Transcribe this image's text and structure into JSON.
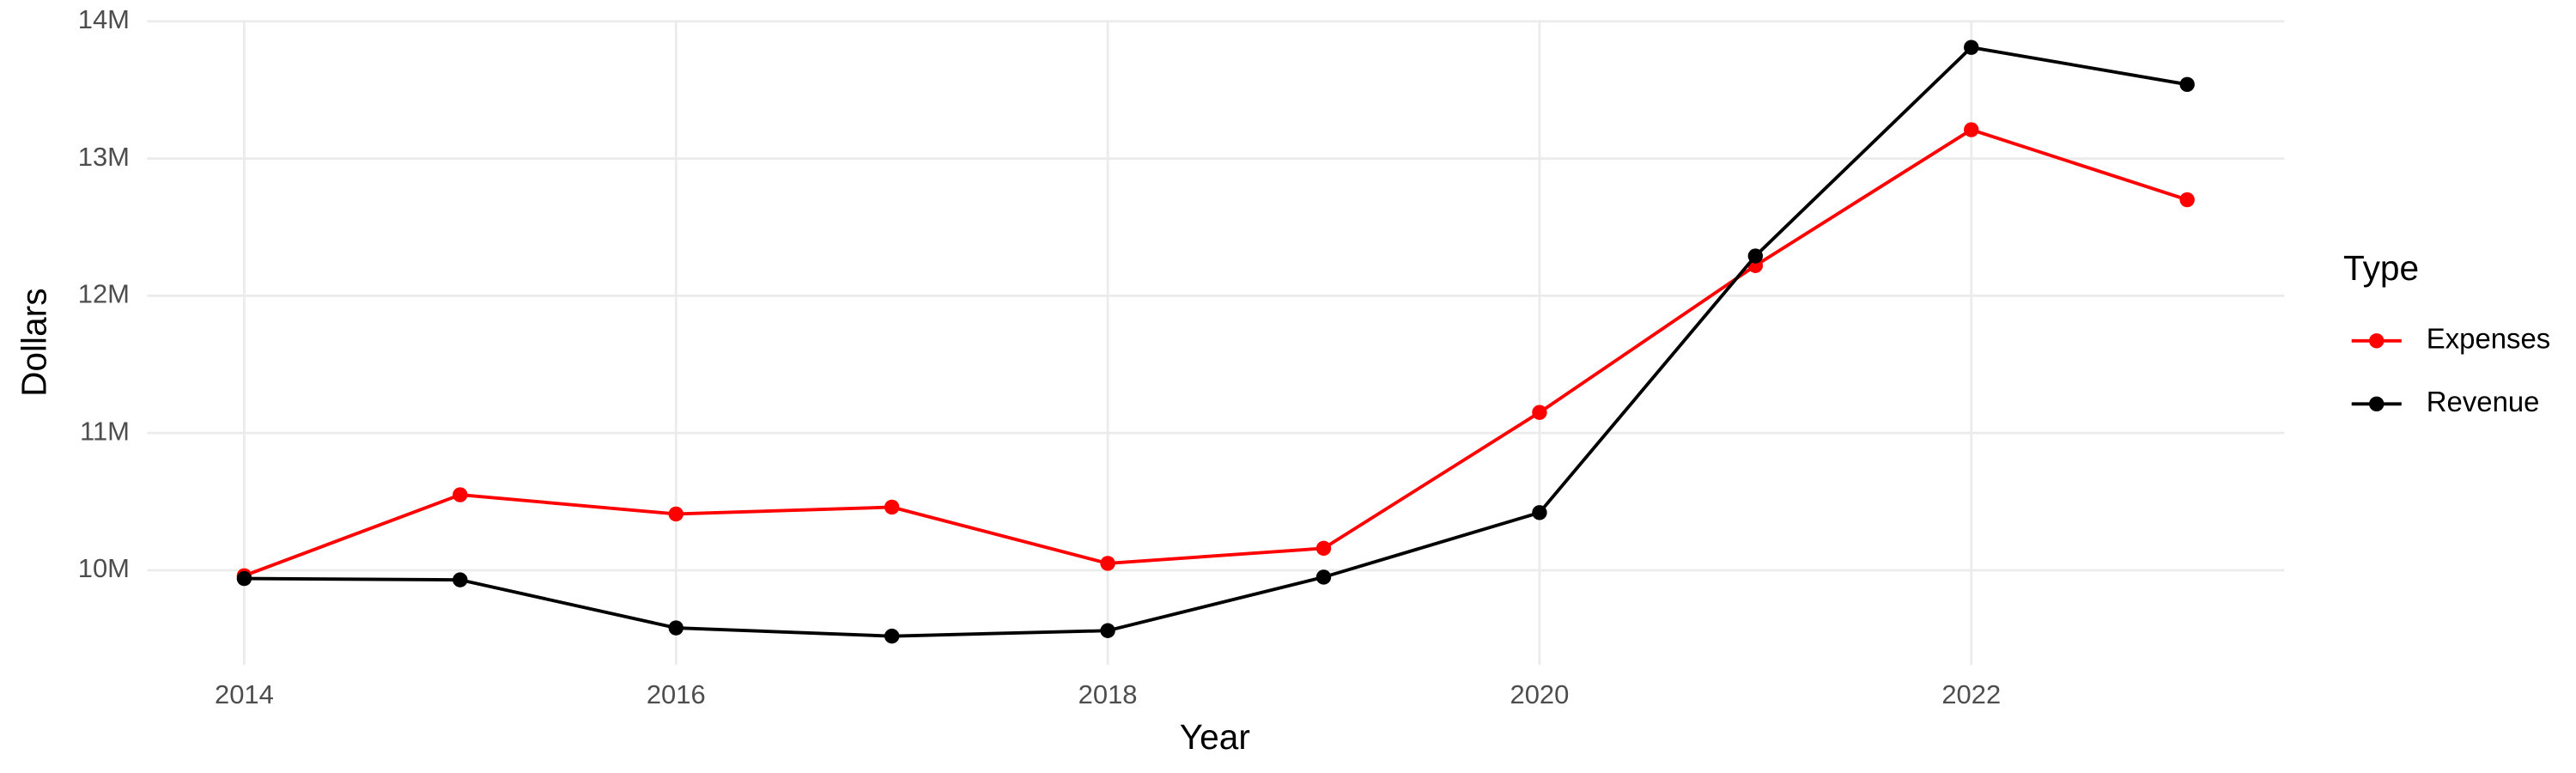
{
  "chart_data": {
    "type": "line",
    "x_label": "Year",
    "y_label": "Dollars",
    "x": [
      2014,
      2015,
      2016,
      2017,
      2018,
      2019,
      2020,
      2021,
      2022,
      2023
    ],
    "series": [
      {
        "name": "Expenses",
        "color": "#ff0000",
        "values": [
          9960000,
          10550000,
          10410000,
          10460000,
          10050000,
          10160000,
          11150000,
          12220000,
          13210000,
          12700000
        ]
      },
      {
        "name": "Revenue",
        "color": "#000000",
        "values": [
          9940000,
          9930000,
          9580000,
          9520000,
          9560000,
          9950000,
          10420000,
          12290000,
          13810000,
          13540000
        ]
      }
    ],
    "xlim": [
      2013.55,
      2023.45
    ],
    "xticks": [
      2014,
      2016,
      2018,
      2020,
      2022
    ],
    "ylim": [
      9310000,
      14010000
    ],
    "yticks": [
      {
        "value": 10000000,
        "label": "10M"
      },
      {
        "value": 11000000,
        "label": "11M"
      },
      {
        "value": 12000000,
        "label": "12M"
      },
      {
        "value": 13000000,
        "label": "13M"
      },
      {
        "value": 14000000,
        "label": "14M"
      }
    ],
    "grid": true,
    "legend_title": "Type",
    "legend": "right"
  }
}
